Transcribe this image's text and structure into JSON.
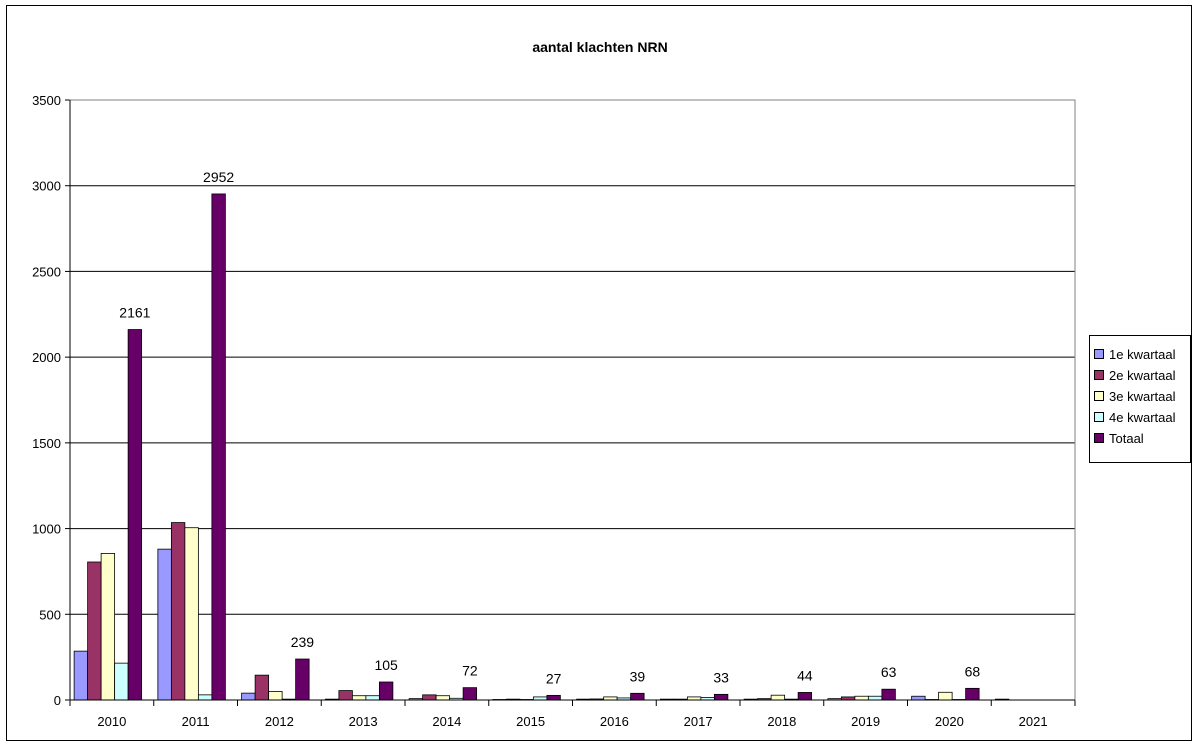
{
  "chart_data": {
    "type": "bar",
    "title": "aantal klachten NRN",
    "xlabel": "",
    "ylabel": "",
    "ylim": [
      0,
      3500
    ],
    "yticks": [
      0,
      500,
      1000,
      1500,
      2000,
      2500,
      3000,
      3500
    ],
    "grid": true,
    "legend_position": "right",
    "categories": [
      "2010",
      "2011",
      "2012",
      "2013",
      "2014",
      "2015",
      "2016",
      "2017",
      "2018",
      "2019",
      "2020",
      "2021"
    ],
    "series": [
      {
        "name": "1e kwartaal",
        "color": "#9999FF",
        "values": [
          285,
          880,
          40,
          5,
          8,
          3,
          5,
          5,
          5,
          8,
          22,
          5
        ]
      },
      {
        "name": "2e kwartaal",
        "color": "#993366",
        "values": [
          805,
          1035,
          145,
          55,
          30,
          5,
          6,
          5,
          8,
          18,
          3,
          0
        ]
      },
      {
        "name": "3e kwartaal",
        "color": "#FFFFCC",
        "values": [
          855,
          1005,
          50,
          25,
          25,
          3,
          18,
          18,
          28,
          22,
          45,
          0
        ]
      },
      {
        "name": "4e kwartaal",
        "color": "#CCFFFF",
        "values": [
          215,
          30,
          5,
          25,
          10,
          18,
          12,
          15,
          5,
          22,
          3,
          0
        ]
      },
      {
        "name": "Totaal",
        "color": "#660066",
        "values": [
          2161,
          2952,
          239,
          105,
          72,
          27,
          39,
          33,
          44,
          63,
          68,
          0
        ]
      }
    ],
    "data_labels": {
      "series": "Totaal",
      "labels": [
        "2161",
        "2952",
        "239",
        "105",
        "72",
        "27",
        "39",
        "33",
        "44",
        "63",
        "68",
        ""
      ]
    }
  }
}
